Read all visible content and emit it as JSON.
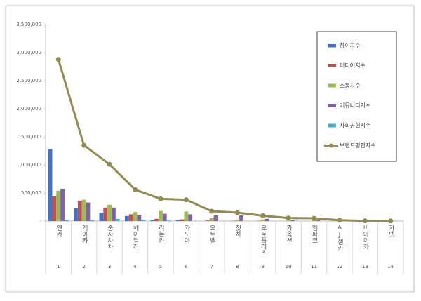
{
  "chart_data": {
    "type": "bar",
    "categories": [
      "엔카",
      "케이카",
      "중자차차",
      "헤이딜러",
      "리본카",
      "카모아",
      "오토벨",
      "첫차",
      "오토플러스",
      "카옥션",
      "엠파크",
      "AJ셀카",
      "비마이카",
      "카넷"
    ],
    "category_numbers": [
      1,
      2,
      3,
      4,
      5,
      6,
      7,
      8,
      9,
      10,
      11,
      12,
      13,
      14
    ],
    "series": [
      {
        "name": "참여지수",
        "color": "#4472c4",
        "values": [
          1280000,
          230000,
          150000,
          90000,
          20000,
          20000,
          0,
          0,
          0,
          0,
          0,
          0,
          0,
          0
        ]
      },
      {
        "name": "미디어지수",
        "color": "#c0504d",
        "values": [
          450000,
          360000,
          240000,
          120000,
          40000,
          30000,
          10000,
          5000,
          5000,
          0,
          0,
          0,
          0,
          0
        ]
      },
      {
        "name": "소통지수",
        "color": "#9bbb59",
        "values": [
          540000,
          380000,
          290000,
          160000,
          180000,
          170000,
          50000,
          20000,
          30000,
          10000,
          20000,
          5000,
          0,
          0
        ]
      },
      {
        "name": "커뮤니티지수",
        "color": "#8064a2",
        "values": [
          570000,
          330000,
          240000,
          110000,
          130000,
          120000,
          100000,
          100000,
          40000,
          20000,
          20000,
          5000,
          2000,
          2000
        ]
      },
      {
        "name": "사회공헌지수",
        "color": "#4bacc6",
        "values": [
          20000,
          20000,
          40000,
          20000,
          10000,
          5000,
          0,
          0,
          0,
          0,
          0,
          0,
          0,
          0
        ]
      },
      {
        "name": "브랜드평판지수",
        "color": "#948a54",
        "type": "line",
        "values": [
          2880000,
          1350000,
          1010000,
          560000,
          395000,
          380000,
          175000,
          150000,
          95000,
          55000,
          50000,
          15000,
          5000,
          3000
        ]
      }
    ],
    "ylim": [
      0,
      3500000
    ],
    "yticks": [
      {
        "value": 0,
        "label": "-"
      },
      {
        "value": 500000,
        "label": "500,000"
      },
      {
        "value": 1000000,
        "label": "1,000,000"
      },
      {
        "value": 1500000,
        "label": "1,500,000"
      },
      {
        "value": 2000000,
        "label": "2,000,000"
      },
      {
        "value": 2500000,
        "label": "2,500,000"
      },
      {
        "value": 3000000,
        "label": "3,000,000"
      },
      {
        "value": 3500000,
        "label": "3,500,000"
      }
    ],
    "grid": false
  }
}
